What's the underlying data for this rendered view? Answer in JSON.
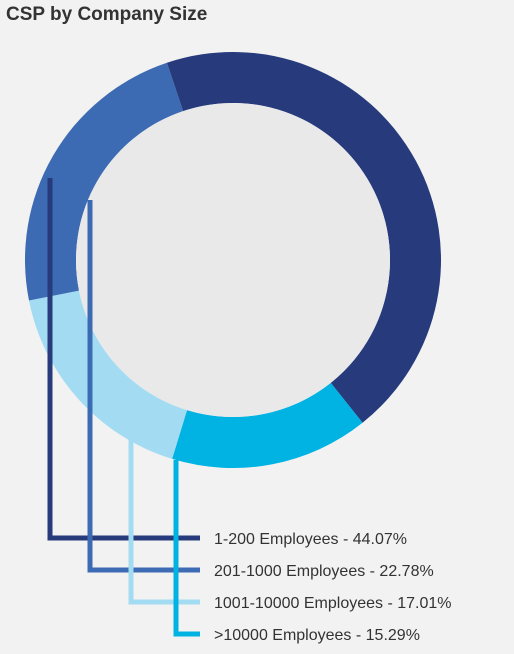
{
  "chart_data": {
    "type": "pie",
    "title": "CSP by Company Size",
    "series": [
      {
        "name": "1-200 Employees",
        "value": 44.07,
        "label": "1-200 Employees - 44.07%",
        "color": "#263a7c"
      },
      {
        "name": "201-1000 Employees",
        "value": 22.78,
        "label": "201-1000 Employees - 22.78%",
        "color": "#3d6bb3"
      },
      {
        "name": "1001-10000 Employees",
        "value": 17.01,
        "label": "1001-10000 Employees - 17.01%",
        "color": "#a3dcf2"
      },
      {
        "name": ">10000 Employees",
        "value": 15.29,
        "label": ">10000 Employees - 15.29%",
        "color": "#00b3e2"
      }
    ],
    "donut": true,
    "legend_position": "bottom-right"
  }
}
